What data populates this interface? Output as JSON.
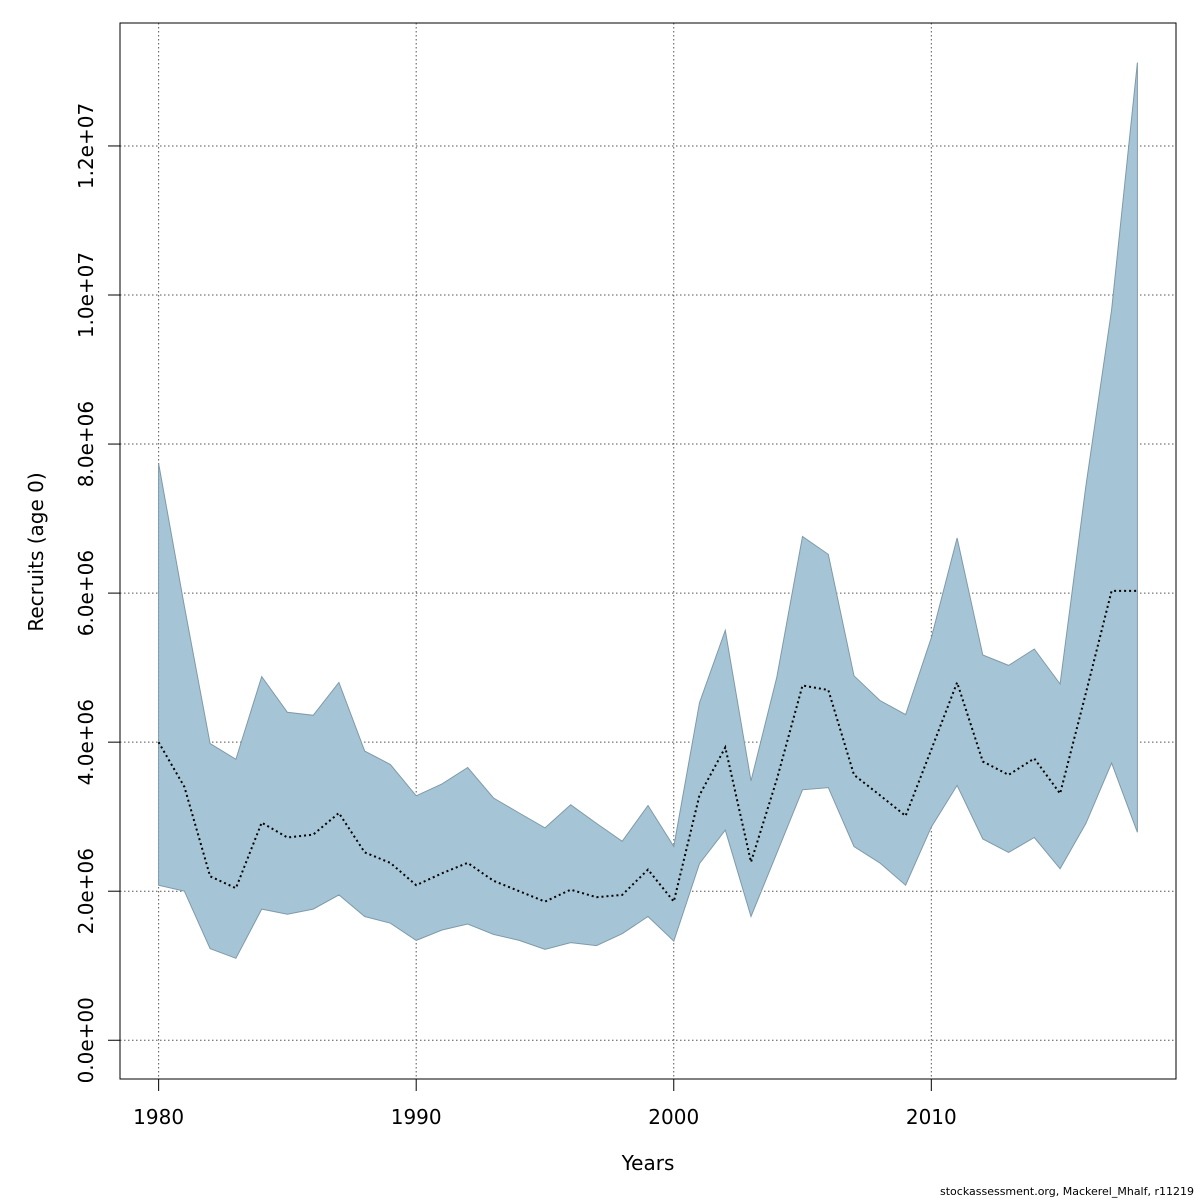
{
  "chart_data": {
    "type": "area",
    "xlabel": "Years",
    "ylabel": "Recruits (age 0)",
    "xlim": [
      1978.5,
      2019.5
    ],
    "ylim": [
      -520000,
      13650000
    ],
    "x_ticks": [
      1980,
      1990,
      2000,
      2010
    ],
    "x_tick_labels": [
      "1980",
      "1990",
      "2000",
      "2010"
    ],
    "y_ticks": [
      0,
      2000000,
      4000000,
      6000000,
      8000000,
      10000000,
      12000000
    ],
    "y_tick_labels": [
      "0.0e+00",
      "2.0e+06",
      "4.0e+06",
      "6.0e+06",
      "8.0e+06",
      "1.0e+07",
      "1.2e+07"
    ],
    "grid": true,
    "x": [
      1980,
      1981,
      1982,
      1983,
      1984,
      1985,
      1986,
      1987,
      1988,
      1989,
      1990,
      1991,
      1992,
      1993,
      1994,
      1995,
      1996,
      1997,
      1998,
      1999,
      2000,
      2001,
      2002,
      2003,
      2004,
      2005,
      2006,
      2007,
      2008,
      2009,
      2010,
      2011,
      2012,
      2013,
      2014,
      2015,
      2016,
      2017,
      2018
    ],
    "series": [
      {
        "values": [
          4000000,
          3400000,
          2200000,
          2040000,
          2920000,
          2720000,
          2760000,
          3050000,
          2520000,
          2380000,
          2080000,
          2240000,
          2380000,
          2140000,
          2000000,
          1860000,
          2020000,
          1920000,
          1950000,
          2290000,
          1860000,
          3290000,
          3930000,
          2390000,
          3500000,
          4760000,
          4700000,
          3560000,
          3290000,
          3010000,
          3900000,
          4800000,
          3740000,
          3560000,
          3780000,
          3310000,
          4660000,
          6030000,
          6030000
        ],
        "lower": [
          2080000,
          2000000,
          1230000,
          1100000,
          1760000,
          1690000,
          1760000,
          1950000,
          1660000,
          1570000,
          1340000,
          1480000,
          1560000,
          1420000,
          1340000,
          1220000,
          1310000,
          1270000,
          1430000,
          1660000,
          1330000,
          2370000,
          2820000,
          1660000,
          2510000,
          3360000,
          3390000,
          2600000,
          2380000,
          2080000,
          2860000,
          3420000,
          2700000,
          2520000,
          2720000,
          2300000,
          2910000,
          3720000,
          2790000
        ],
        "upper": [
          7740000,
          5820000,
          3980000,
          3770000,
          4880000,
          4400000,
          4360000,
          4800000,
          3880000,
          3700000,
          3280000,
          3440000,
          3660000,
          3250000,
          3050000,
          2850000,
          3160000,
          2910000,
          2670000,
          3150000,
          2600000,
          4530000,
          5500000,
          3480000,
          4870000,
          6760000,
          6520000,
          4890000,
          4560000,
          4370000,
          5400000,
          6740000,
          5170000,
          5030000,
          5250000,
          4780000,
          7440000,
          9800000,
          13120000
        ]
      }
    ],
    "colors": {
      "band": "#a5c5d6",
      "band_edge": "#7f9aa8",
      "line": "#000000",
      "grid": "#555555"
    }
  },
  "footer": "stockassessment.org, Mackerel_Mhalf, r11219"
}
